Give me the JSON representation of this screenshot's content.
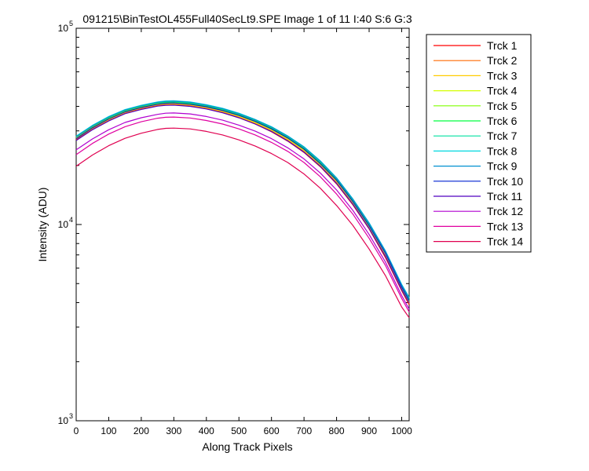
{
  "chart_data": {
    "type": "line",
    "title": "091215\\BinTestOL455Full40SecLt9.SPE  Image 1 of 11  I:40  S:6  G:3",
    "xlabel": "Along Track Pixels",
    "ylabel": "Intensity (ADU)",
    "xlim": [
      0,
      1023
    ],
    "ylim": [
      1000,
      100000
    ],
    "yscale": "log",
    "xticks": [
      0,
      100,
      200,
      300,
      400,
      500,
      600,
      700,
      800,
      900,
      1000
    ],
    "yticks": [
      {
        "base": "10",
        "exp": "3",
        "value": 1000
      },
      {
        "base": "10",
        "exp": "4",
        "value": 10000
      },
      {
        "base": "10",
        "exp": "5",
        "value": 100000
      }
    ],
    "legend_position": "outside-right",
    "grid": false,
    "x": [
      0,
      50,
      100,
      150,
      200,
      250,
      275,
      300,
      350,
      400,
      450,
      500,
      550,
      600,
      650,
      700,
      750,
      800,
      850,
      900,
      950,
      1000,
      1023
    ],
    "series": [
      {
        "name": "Trck 1",
        "color": "#ff0000",
        "values": [
          27000,
          30500,
          33800,
          36800,
          38800,
          40300,
          40700,
          40800,
          40200,
          38900,
          37200,
          35000,
          32500,
          29700,
          26600,
          23300,
          19700,
          16100,
          12600,
          9500,
          6800,
          4600,
          3900
        ]
      },
      {
        "name": "Trck 2",
        "color": "#ff6a00",
        "values": [
          27200,
          30700,
          34000,
          37000,
          39000,
          40500,
          40900,
          41000,
          40400,
          39100,
          37400,
          35200,
          32700,
          29900,
          26800,
          23500,
          19900,
          16300,
          12700,
          9600,
          6900,
          4650,
          3950
        ]
      },
      {
        "name": "Trck 3",
        "color": "#ffcc00",
        "values": [
          27500,
          31000,
          34300,
          37300,
          39300,
          40800,
          41200,
          41300,
          40700,
          39400,
          37700,
          35500,
          33000,
          30200,
          27100,
          23800,
          20100,
          16500,
          12900,
          9700,
          7000,
          4700,
          4000
        ]
      },
      {
        "name": "Trck 4",
        "color": "#d4ff00",
        "values": [
          27700,
          31300,
          34600,
          37600,
          39600,
          41100,
          41500,
          41600,
          41000,
          39700,
          38000,
          35800,
          33300,
          30500,
          27400,
          24000,
          20300,
          16700,
          13000,
          9800,
          7100,
          4750,
          4050
        ]
      },
      {
        "name": "Trck 5",
        "color": "#80ff00",
        "values": [
          27900,
          31500,
          34900,
          37900,
          39900,
          41400,
          41800,
          41900,
          41300,
          40000,
          38300,
          36100,
          33600,
          30800,
          27700,
          24300,
          20500,
          16900,
          13200,
          9900,
          7200,
          4800,
          4100
        ]
      },
      {
        "name": "Trck 6",
        "color": "#00ff40",
        "values": [
          28000,
          31700,
          35100,
          38100,
          40100,
          41600,
          42000,
          42100,
          41500,
          40200,
          38500,
          36300,
          33800,
          31000,
          27900,
          24500,
          20700,
          17000,
          13300,
          10000,
          7250,
          4850,
          4150
        ]
      },
      {
        "name": "Trck 7",
        "color": "#00e0a0",
        "values": [
          28100,
          31900,
          35300,
          38300,
          40300,
          41800,
          42300,
          42400,
          41800,
          40500,
          38800,
          36600,
          34100,
          31300,
          28100,
          24700,
          20900,
          17200,
          13400,
          10100,
          7300,
          4900,
          4200
        ]
      },
      {
        "name": "Trck 8",
        "color": "#00d8e0",
        "values": [
          28200,
          32000,
          35500,
          38500,
          40500,
          42100,
          42600,
          42700,
          42100,
          40800,
          39100,
          36900,
          34300,
          31500,
          28300,
          24900,
          21100,
          17300,
          13500,
          10200,
          7350,
          4950,
          4250
        ]
      },
      {
        "name": "Trck 9",
        "color": "#0090d0",
        "values": [
          28000,
          31800,
          35300,
          38300,
          40300,
          41900,
          42400,
          42500,
          41900,
          40600,
          38900,
          36700,
          34200,
          31400,
          28200,
          24800,
          21000,
          17200,
          13450,
          10150,
          7320,
          4920,
          4220
        ]
      },
      {
        "name": "Trck 10",
        "color": "#0020d0",
        "values": [
          27400,
          31100,
          34500,
          37500,
          39500,
          41000,
          41500,
          41600,
          41000,
          39800,
          38100,
          36000,
          33500,
          30700,
          27600,
          24200,
          20400,
          16800,
          13100,
          9850,
          7150,
          4800,
          4100
        ]
      },
      {
        "name": "Trck 11",
        "color": "#5000c0",
        "values": [
          26800,
          30400,
          33700,
          36700,
          38600,
          40100,
          40500,
          40600,
          40000,
          38800,
          37100,
          35000,
          32500,
          29800,
          26700,
          23400,
          19800,
          16200,
          12700,
          9550,
          6900,
          4650,
          3980
        ]
      },
      {
        "name": "Trck 12",
        "color": "#b000d0",
        "values": [
          24000,
          27300,
          30400,
          33100,
          35000,
          36400,
          36900,
          37000,
          36600,
          35500,
          34000,
          32100,
          29900,
          27400,
          24600,
          21600,
          18300,
          15000,
          11800,
          8900,
          6450,
          4350,
          3700
        ]
      },
      {
        "name": "Trck 13",
        "color": "#e000a0",
        "values": [
          22700,
          25900,
          28900,
          31500,
          33400,
          34800,
          35200,
          35300,
          34900,
          33900,
          32500,
          30700,
          28600,
          26200,
          23600,
          20700,
          17500,
          14300,
          11300,
          8500,
          6200,
          4200,
          3580
        ]
      },
      {
        "name": "Trck 14",
        "color": "#e00050",
        "values": [
          19800,
          22600,
          25200,
          27500,
          29200,
          30500,
          30900,
          31000,
          30700,
          29800,
          28600,
          27000,
          25100,
          23000,
          20700,
          18100,
          15300,
          12500,
          9900,
          7500,
          5500,
          3800,
          3350
        ]
      }
    ]
  }
}
